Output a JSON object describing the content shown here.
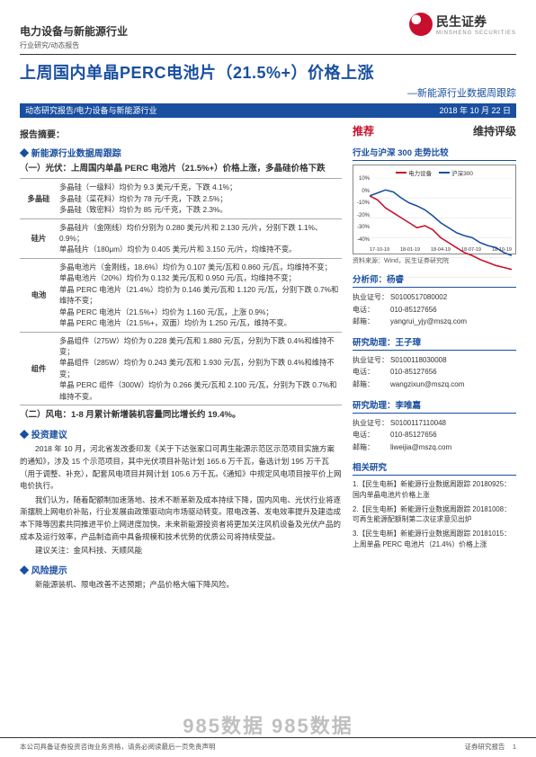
{
  "brand": {
    "name": "民生证券",
    "name_en": "MINSHENG SECURITIES"
  },
  "header": {
    "sector": "电力设备与新能源行业",
    "doc_type": "行业研究/动态报告"
  },
  "title": {
    "main": "上周国内单晶PERC电池片（21.5%+）价格上涨",
    "sub": "—新能源行业数据周跟踪"
  },
  "banner": {
    "left": "动态研究报告/电力设备与新能源行业",
    "date": "2018 年 10 月 22 日"
  },
  "summary_label": "报告摘要：",
  "bullets": {
    "data_track": "新能源行业数据周跟踪",
    "invest": "投资建议",
    "risk": "风险提示"
  },
  "pv_heading": "（一）光伏：上周国内单晶 PERC 电池片（21.5%+）价格上涨，多晶硅价格下跌",
  "table_rows": [
    {
      "cat": "多晶硅",
      "body": "多晶硅（一级料）均价为 9.3 美元/千克，下跌 4.1%；\n多晶硅（菜花料）均价为 78 元/千克，下跌 2.5%；\n多晶硅（致密料）均价为 85 元/千克，下跌 2.3%。"
    },
    {
      "cat": "硅片",
      "body": "多晶硅片（金刚线）均价分别为 0.280 美元/片和 2.130 元/片，分别下跌 1.1%、0.9%；\n单晶硅片（180μm）均价为 0.405 美元/片和 3.150 元/片，均维持不变。"
    },
    {
      "cat": "电池",
      "body": "多晶电池片（金刚线，18.6%）均价为 0.107 美元/瓦和 0.860 元/瓦，均维持不变；\n单晶电池片（20%）均价为 0.132 美元/瓦和 0.950 元/瓦，均维持不变；\n单晶 PERC 电池片（21.4%）均价为 0.146 美元/瓦和 1.120 元/瓦，分别下跌 0.7%和维持不变；\n单晶 PERC 电池片（21.5%+）均价为 1.160 元/瓦，上涨 0.9%；\n单晶 PERC 电池片（21.5%+，双面）均价为 1.250 元/瓦，维持不变。"
    },
    {
      "cat": "组件",
      "body": "多晶组件（275W）均价为 0.228 美元/瓦和 1.880 元/瓦，分别为下跌 0.4%和维持不变；\n单晶组件（285W）均价为 0.243 美元/瓦和 1.930 元/瓦，分别为下跌 0.4%和维持不变；\n单晶 PERC 组件（300W）均价为 0.266 美元/瓦和 2.100 元/瓦，分别为下跌 0.7%和维持不变。"
    }
  ],
  "wind_heading": "（二）风电：1-8 月累计新增装机容量同比增长约 19.4%。",
  "invest_paras": [
    "2018 年 10 月，河北省发改委印发《关于下达张家口可再生能源示范区示范项目实施方案的通知》，涉及 15 个示范项目，其中光伏项目补贴计划 165.6 万千瓦，备选计划 195 万千瓦（用于调整、补充），配套风电项目并网计划 105.6 万千瓦。《通知》中规定风电项目按平价上网电价执行。",
    "我们认为，随着配额制加速落地、技术不断革新及成本持续下降，国内风电、光伏行业将逐渐摆脱上网电价补贴，行业发展由政策驱动向市场驱动转变。限电改善、发电效率提升及建造成本下降等因素共同推进平价上网进度加快。未来新能源投资者将更加关注风机设备及光伏产品的成本及运行效率，产品制造商中具备规模和技术优势的优质公司将持续受益。",
    "建议关注：金风科技、天顺风能"
  ],
  "risk_para": "新能源装机、限电改善不达预期；产品价格大幅下降风险。",
  "right": {
    "rating_rec": "推荐",
    "rating_maint": "维持评级",
    "chart_title": "行业与沪深 300 走势比较",
    "chart": {
      "legend": [
        {
          "label": "电力设备",
          "color": "#c8102e"
        },
        {
          "label": "沪深300",
          "color": "#1a4fa0"
        }
      ],
      "y_ticks": [
        "10%",
        "0%",
        "-10%",
        "-20%",
        "-30%",
        "-40%"
      ],
      "x_ticks": [
        "17-10-19",
        "18-01-19",
        "18-04-19",
        "18-07-19",
        "18-10-19"
      ],
      "series": [
        {
          "color": "#c8102e",
          "points": [
            0.82,
            0.78,
            0.7,
            0.65,
            0.6,
            0.55,
            0.5,
            0.52,
            0.48,
            0.4,
            0.35,
            0.3,
            0.25,
            0.22,
            0.18,
            0.15,
            0.12,
            0.1,
            0.08
          ]
        },
        {
          "color": "#1a4fa0",
          "points": [
            0.82,
            0.85,
            0.88,
            0.86,
            0.8,
            0.75,
            0.72,
            0.68,
            0.62,
            0.55,
            0.5,
            0.45,
            0.42,
            0.4,
            0.35,
            0.32,
            0.3,
            0.25,
            0.22
          ]
        }
      ],
      "source": "资料来源：Wind，民生证券研究院"
    },
    "analysts": [
      {
        "title": "分析师：杨睿",
        "cert": "S0100517080002",
        "tel": "010-85127656",
        "email": "yangrui_yjy@mszq.com"
      },
      {
        "title": "研究助理：王子璋",
        "cert": "S0100118030008",
        "tel": "010-85127656",
        "email": "wangzixun@mszq.com"
      },
      {
        "title": "研究助理：李唯嘉",
        "cert": "S0100117110048",
        "tel": "010-85127656",
        "email": "liweijia@mszq.com"
      }
    ],
    "labels": {
      "cert": "执业证号：",
      "tel": "电话：",
      "email": "邮箱："
    },
    "related_title": "相关研究",
    "related": [
      "1.【民生电新】新能源行业数据周跟踪 20180925：国内单晶电池片价格上涨",
      "2.【民生电新】新能源行业数据周跟踪 20181008：可再生能源配额制第二次征求意见出炉",
      "3.【民生电新】新能源行业数据周跟踪 20181015：上周单晶 PERC 电池片（21.4%）价格上涨"
    ]
  },
  "footer": {
    "left": "本公司具备证券投资咨询业务资格，请务必阅读最后一页免责声明",
    "right_label": "证券研究报告",
    "page": "1"
  },
  "watermark": "985数据 985数据"
}
